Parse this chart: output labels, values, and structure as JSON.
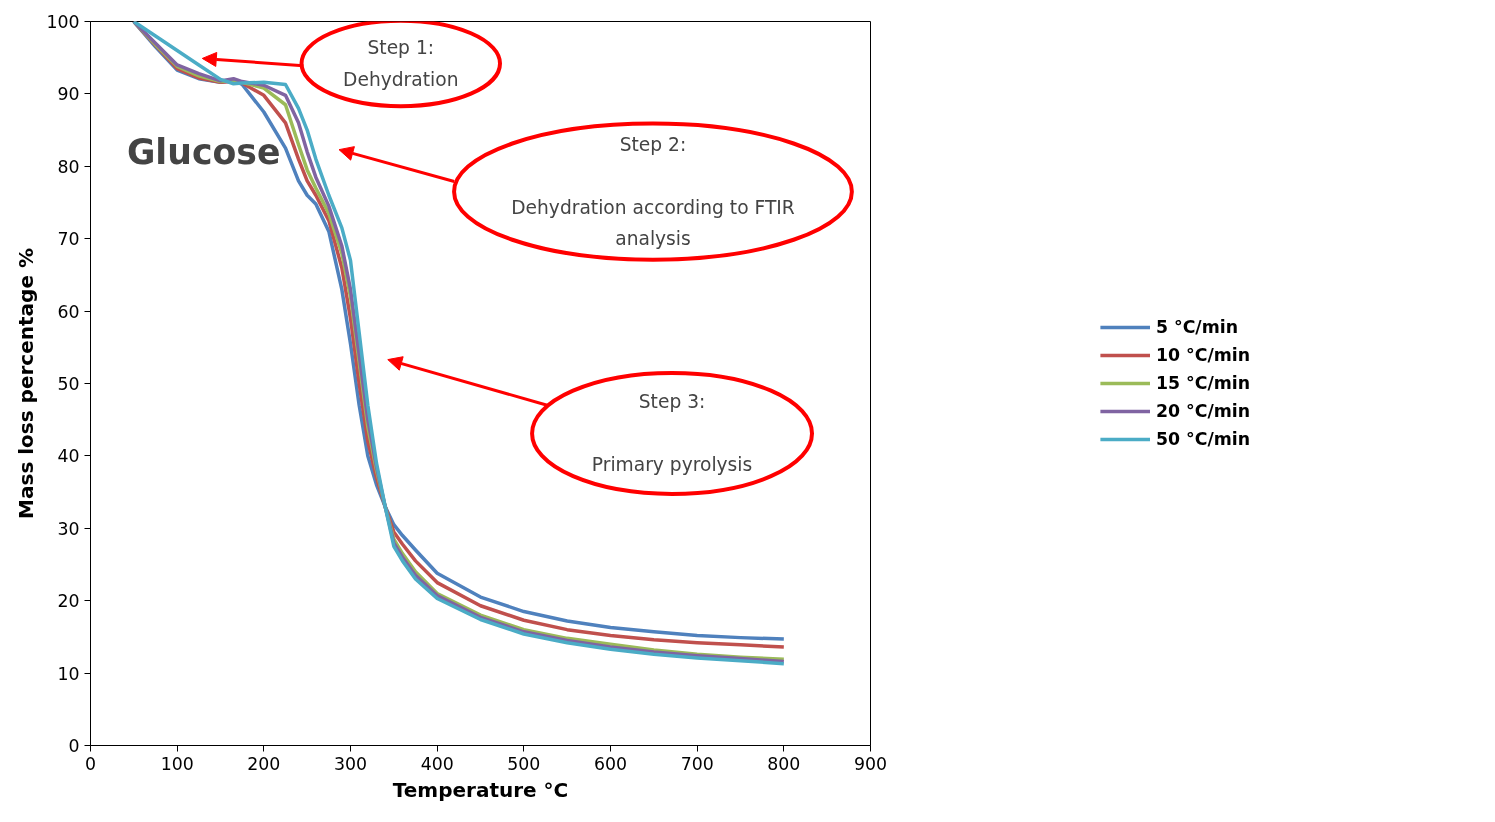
{
  "chart_data": {
    "type": "line",
    "xlabel": "Temperature °C",
    "ylabel": "Mass loss percentage %",
    "x": [
      50,
      75,
      100,
      125,
      150,
      165,
      175,
      200,
      225,
      240,
      250,
      260,
      275,
      290,
      300,
      310,
      320,
      330,
      340,
      350,
      360,
      375,
      400,
      450,
      500,
      550,
      600,
      650,
      700,
      750,
      800
    ],
    "series": [
      {
        "name": "5 °C/min",
        "color": "#4f81bd",
        "values": [
          100,
          96.5,
          93.3,
          92.1,
          91.6,
          91.9,
          91.3,
          87.5,
          82.5,
          78,
          76,
          74.8,
          71,
          63,
          55.5,
          47,
          40,
          36,
          33,
          30.5,
          29,
          27,
          23.8,
          20.5,
          18.5,
          17.2,
          16.3,
          15.7,
          15.2,
          14.9,
          14.7
        ]
      },
      {
        "name": "10 °C/min",
        "color": "#c0504d",
        "values": [
          100,
          96.7,
          93.5,
          92.2,
          91.6,
          91.7,
          91.5,
          89.8,
          86,
          81,
          78,
          76,
          72.5,
          66,
          59,
          50,
          42,
          37,
          33,
          29.5,
          27.8,
          25.5,
          22.5,
          19.3,
          17.3,
          16,
          15.2,
          14.6,
          14.2,
          13.9,
          13.6
        ]
      },
      {
        "name": "15 °C/min",
        "color": "#9bbb59",
        "values": [
          100,
          96.8,
          93.8,
          92.5,
          91.7,
          91.8,
          91.6,
          90.8,
          88.5,
          83,
          79.5,
          77,
          73.5,
          68,
          62,
          53,
          44,
          38,
          33,
          28.5,
          26.5,
          24,
          21,
          18,
          16,
          14.8,
          14,
          13.2,
          12.6,
          12.2,
          11.9
        ]
      },
      {
        "name": "20 °C/min",
        "color": "#8064a2",
        "values": [
          100,
          97,
          94,
          92.8,
          91.8,
          92.1,
          91.7,
          91.2,
          89.8,
          86,
          82,
          78.5,
          74.5,
          69,
          63,
          54,
          45,
          38.5,
          33,
          28,
          26,
          23.5,
          20.7,
          17.7,
          15.7,
          14.5,
          13.6,
          12.9,
          12.4,
          12,
          11.6
        ]
      },
      {
        "name": "50 °C/min",
        "color": "#4bacc6",
        "values": [
          100,
          98,
          96,
          94,
          92,
          91.4,
          91.5,
          91.6,
          91.3,
          88,
          85,
          81,
          76,
          71.5,
          67,
          57,
          47,
          39,
          33,
          27.5,
          25.5,
          23,
          20.3,
          17.4,
          15.4,
          14.2,
          13.3,
          12.6,
          12.1,
          11.7,
          11.3
        ]
      }
    ],
    "xlim": [
      0,
      900
    ],
    "xticks": [
      0,
      100,
      200,
      300,
      400,
      500,
      600,
      700,
      800,
      900
    ],
    "ylim": [
      0,
      100
    ],
    "yticks": [
      0,
      10,
      20,
      30,
      40,
      50,
      60,
      70,
      80,
      90,
      100
    ],
    "grid": false,
    "legend": "right",
    "line_style": "solid",
    "marker": "none",
    "annotations": [
      "Glucose",
      "Step 1:\nDehydration",
      "Step 2:\n\nDehydration according to FTIR\nanalysis",
      "Step 3:\n\nPrimary pyrolysis"
    ]
  }
}
